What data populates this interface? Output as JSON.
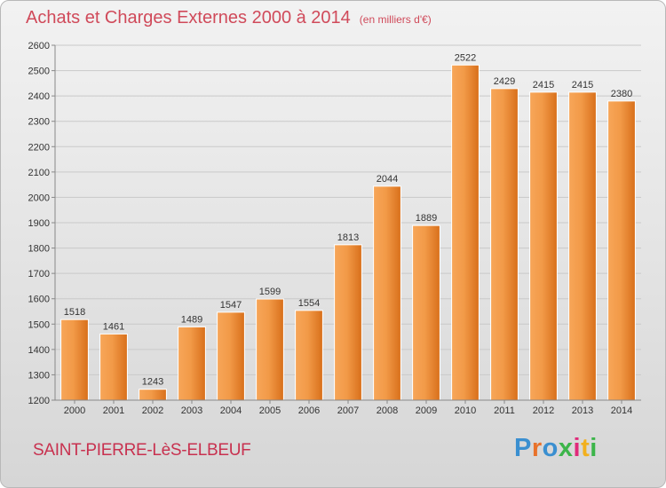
{
  "header": {
    "title": "Achats et Charges Externes 2000 à 2014",
    "subtitle": "(en milliers d'€)"
  },
  "footer": {
    "commune": "SAINT-PIERRE-LèS-ELBEUF",
    "brand": "Proxiti",
    "brand_colors": [
      "#3a8fd0",
      "#e8722a",
      "#3a8fd0",
      "#3cb54a",
      "#e02a7a",
      "#f2b01e",
      "#3cb54a"
    ]
  },
  "chart_data": {
    "type": "bar",
    "categories": [
      "2000",
      "2001",
      "2002",
      "2003",
      "2004",
      "2005",
      "2006",
      "2007",
      "2008",
      "2009",
      "2010",
      "2011",
      "2012",
      "2013",
      "2014"
    ],
    "values": [
      1518,
      1461,
      1243,
      1489,
      1547,
      1599,
      1554,
      1813,
      2044,
      1889,
      2522,
      2429,
      2415,
      2415,
      2380
    ],
    "ylim": [
      1200,
      2600
    ],
    "yticks": [
      1200,
      1300,
      1400,
      1500,
      1600,
      1700,
      1800,
      1900,
      2000,
      2100,
      2200,
      2300,
      2400,
      2500,
      2600
    ],
    "grid": true,
    "bar_color_light": "#f7a659",
    "bar_color_dark": "#d86f1a"
  }
}
